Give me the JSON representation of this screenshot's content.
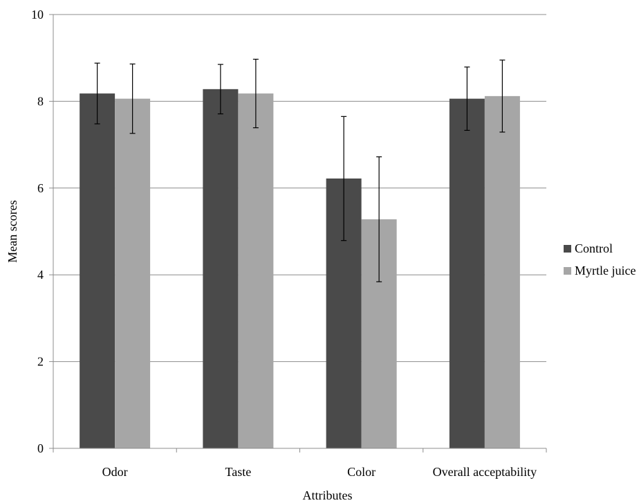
{
  "chart_data": {
    "type": "bar",
    "categories": [
      "Odor",
      "Taste",
      "Color",
      "Overall acceptability"
    ],
    "series": [
      {
        "name": "Control",
        "color": "#4a4a4a",
        "values": [
          8.18,
          8.28,
          6.22,
          8.06
        ],
        "errors": [
          0.7,
          0.57,
          1.43,
          0.73
        ]
      },
      {
        "name": "Myrtle juice",
        "color": "#a6a6a6",
        "values": [
          8.06,
          8.18,
          5.28,
          8.12
        ],
        "errors": [
          0.8,
          0.79,
          1.44,
          0.83
        ]
      }
    ],
    "xlabel": "Attributes",
    "ylabel": "Mean scores",
    "ylim": [
      0,
      10
    ],
    "yticks": [
      "0",
      "2",
      "4",
      "6",
      "8",
      "10"
    ],
    "grid": true,
    "legend_position": "right"
  }
}
